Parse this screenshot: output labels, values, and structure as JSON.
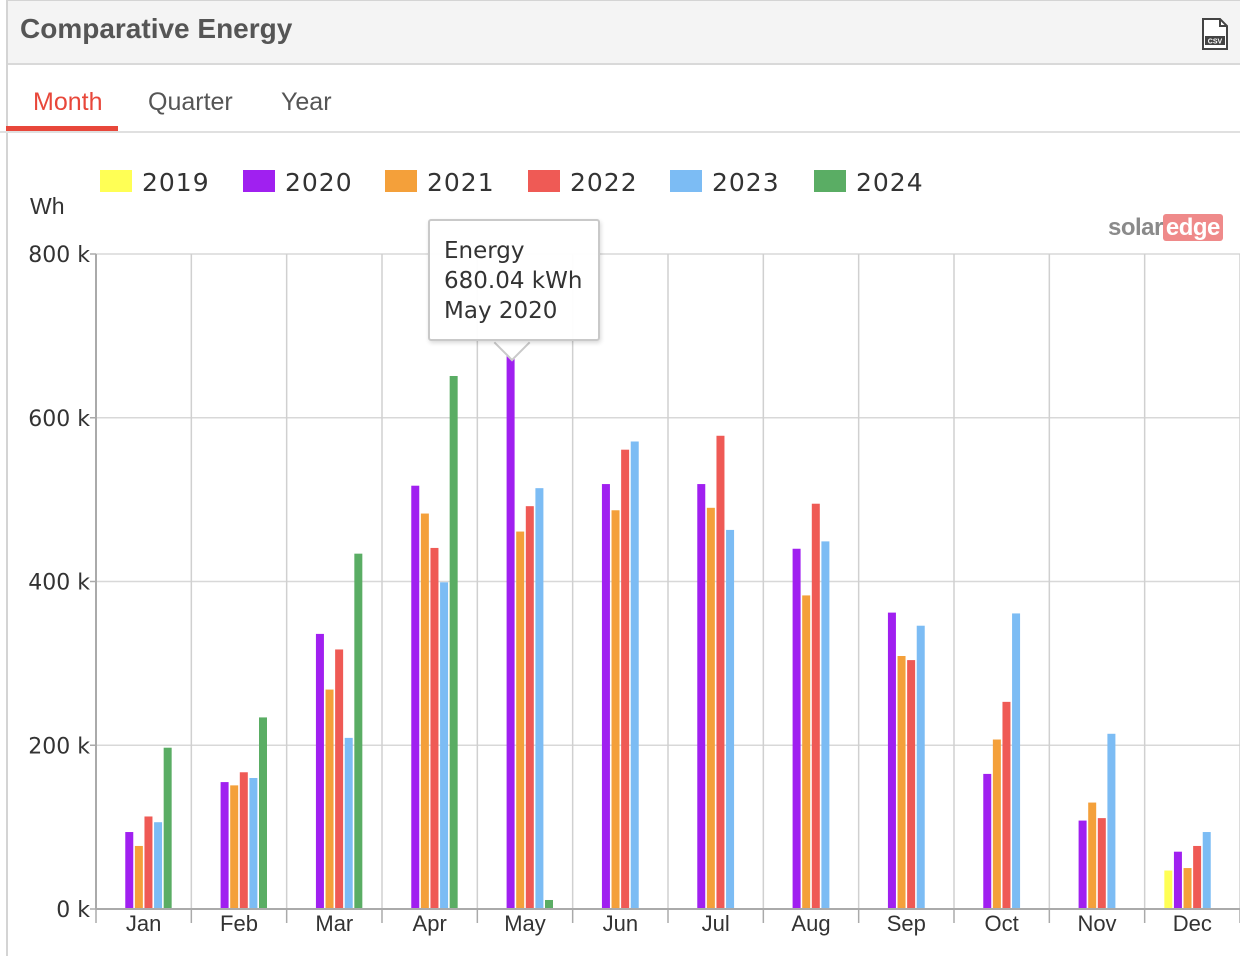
{
  "header": {
    "title": "Comparative Energy",
    "csv_icon": "csv-file-icon"
  },
  "tabs": [
    {
      "label": "Month",
      "active": true
    },
    {
      "label": "Quarter",
      "active": false
    },
    {
      "label": "Year",
      "active": false
    }
  ],
  "unit_label": "Wh",
  "logo": {
    "part1": "solar",
    "part2": "edge"
  },
  "tooltip": {
    "line1": "Energy",
    "line2": "680.04 kWh",
    "line3": "May 2020"
  },
  "chart_data": {
    "type": "bar",
    "categories": [
      "Jan",
      "Feb",
      "Mar",
      "Apr",
      "May",
      "Jun",
      "Jul",
      "Aug",
      "Sep",
      "Oct",
      "Nov",
      "Dec"
    ],
    "ylim": [
      0,
      800000
    ],
    "yticks": [
      0,
      200000,
      400000,
      600000,
      800000
    ],
    "ytick_labels": [
      "0 k",
      "200 k",
      "400 k",
      "600 k",
      "800 k"
    ],
    "ylabel": "Wh",
    "grid": true,
    "legend_position": "top",
    "series": [
      {
        "name": "2019",
        "color": "#ffff55",
        "values": [
          null,
          null,
          null,
          null,
          null,
          null,
          null,
          null,
          null,
          null,
          null,
          47000
        ]
      },
      {
        "name": "2020",
        "color": "#a020f0",
        "values": [
          94000,
          155000,
          336000,
          517000,
          680040,
          519000,
          519000,
          440000,
          362000,
          165000,
          108000,
          70000
        ]
      },
      {
        "name": "2021",
        "color": "#f4a03a",
        "values": [
          77000,
          151000,
          268000,
          483000,
          461000,
          487000,
          490000,
          383000,
          309000,
          207000,
          130000,
          50000
        ]
      },
      {
        "name": "2022",
        "color": "#ef5a55",
        "values": [
          113000,
          167000,
          317000,
          441000,
          492000,
          561000,
          578000,
          495000,
          304000,
          253000,
          111000,
          77000
        ]
      },
      {
        "name": "2023",
        "color": "#7cbcf4",
        "values": [
          106000,
          160000,
          209000,
          399000,
          514000,
          571000,
          463000,
          449000,
          346000,
          361000,
          214000,
          94000
        ]
      },
      {
        "name": "2024",
        "color": "#5aad64",
        "values": [
          197000,
          234000,
          434000,
          651000,
          11000,
          null,
          null,
          null,
          null,
          null,
          null,
          null
        ]
      }
    ]
  }
}
